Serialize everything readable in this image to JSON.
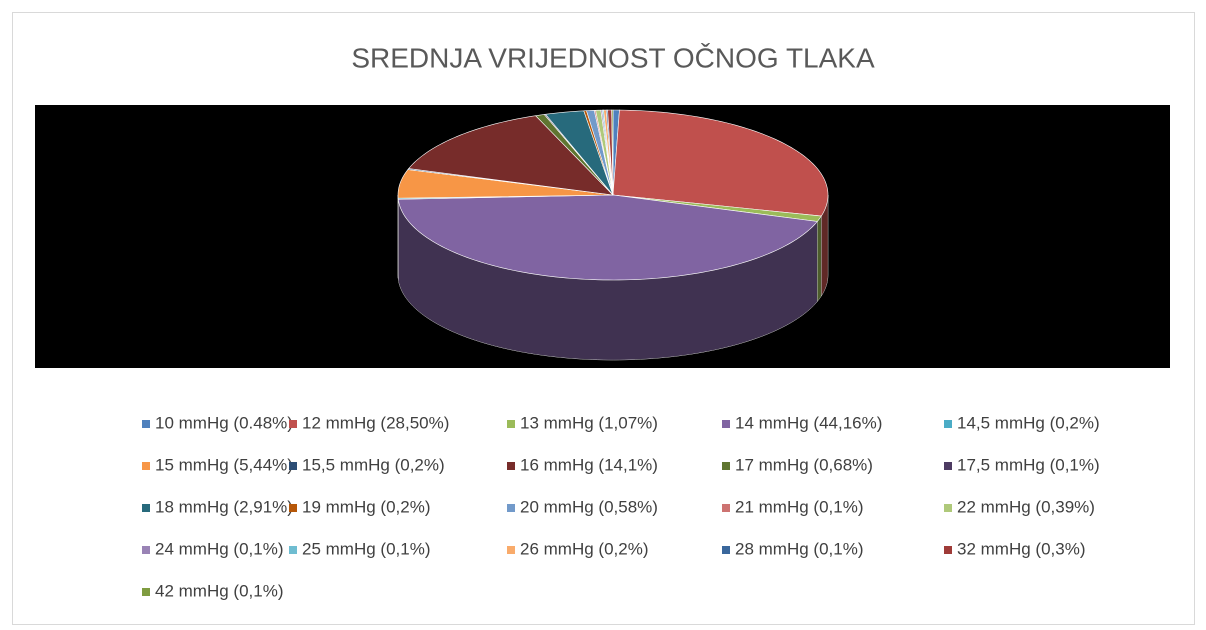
{
  "chart_data": {
    "type": "pie3d",
    "title": "SREDNJA VRIJEDNOST OČNOG TLAKA",
    "categories": [
      "10 mmHg (0.48%)",
      "12 mmHg (28,50%)",
      "13 mmHg (1,07%)",
      "14 mmHg (44,16%)",
      "14,5 mmHg (0,2%)",
      "15 mmHg (5,44%)",
      "15,5 mmHg (0,2%)",
      "16 mmHg (14,1%)",
      "17 mmHg (0,68%)",
      "17,5 mmHg (0,1%)",
      "18 mmHg (2,91%)",
      "19 mmHg (0,2%)",
      "20 mmHg (0,58%)",
      "21 mmHg (0,1%)",
      "22 mmHg (0,39%)",
      "24 mmHg (0,1%)",
      "25 mmHg (0,1%)",
      "26 mmHg (0,2%)",
      "28 mmHg (0,1%)",
      "32 mmHg (0,3%)",
      "42 mmHg (0,1%)"
    ],
    "values": [
      0.48,
      28.5,
      1.07,
      44.16,
      0.2,
      5.44,
      0.2,
      14.1,
      0.68,
      0.1,
      2.91,
      0.2,
      0.58,
      0.1,
      0.39,
      0.1,
      0.1,
      0.2,
      0.1,
      0.3,
      0.1
    ],
    "colors": [
      "#4f81bd",
      "#c0504d",
      "#9bbb59",
      "#8064a2",
      "#4bacc6",
      "#f79646",
      "#2c4d75",
      "#772c2a",
      "#5f7530",
      "#4d3b62",
      "#276a7c",
      "#b65708",
      "#729aca",
      "#cd7371",
      "#afc97a",
      "#9983b5",
      "#6fbdd1",
      "#f9ab6b",
      "#3a679c",
      "#9f3b38",
      "#7f9c40"
    ],
    "legend": "bottom"
  }
}
